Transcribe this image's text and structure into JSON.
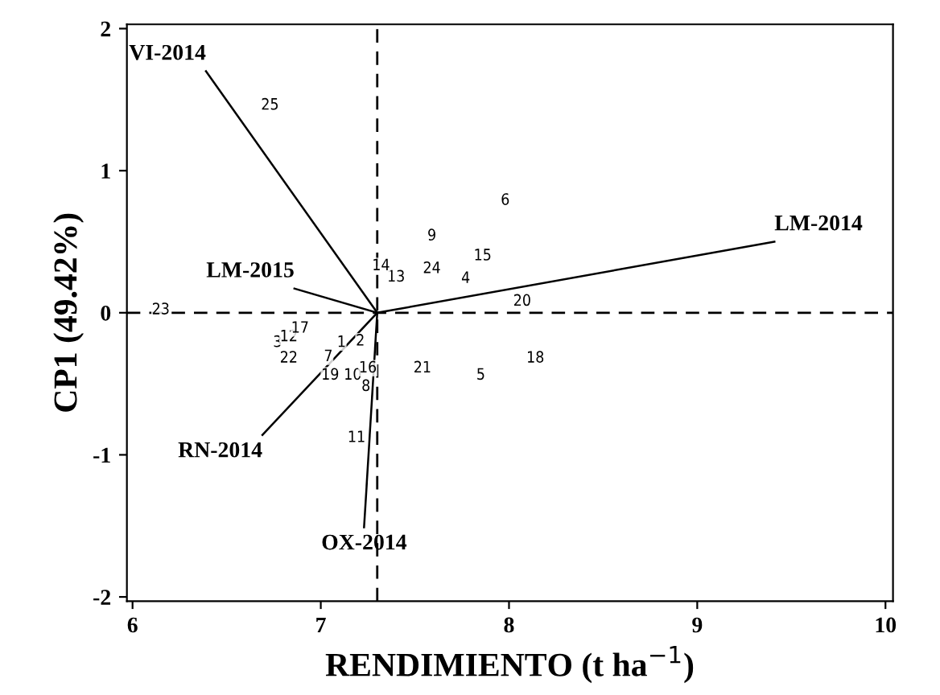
{
  "chart_data": {
    "type": "line",
    "xlabel": "RENDIMIENTO (t ha$^{−1}$)",
    "ylabel": "CP1 (49.42%)",
    "xlim": [
      5.97,
      10.04
    ],
    "ylim": [
      -2.03,
      2.03
    ],
    "xticks": [
      6,
      7,
      8,
      9,
      10
    ],
    "yticks": [
      -2,
      -1,
      0,
      1,
      2
    ],
    "grid": false,
    "legend": false,
    "ref_lines": [
      {
        "axis": "x",
        "value": 7.3,
        "line_style": "dashed",
        "color": "#000000"
      },
      {
        "axis": "y",
        "value": 0,
        "line_style": "dashed",
        "color": "#000000"
      }
    ],
    "annotations": [
      {
        "text": "1",
        "x": 7.11,
        "y": -0.21
      },
      {
        "text": "2",
        "x": 7.21,
        "y": -0.2
      },
      {
        "text": "3",
        "x": 6.77,
        "y": -0.21
      },
      {
        "text": "4",
        "x": 7.77,
        "y": 0.24
      },
      {
        "text": "5",
        "x": 7.85,
        "y": -0.44
      },
      {
        "text": "6",
        "x": 7.98,
        "y": 0.79
      },
      {
        "text": "7",
        "x": 7.04,
        "y": -0.31
      },
      {
        "text": "8",
        "x": 7.24,
        "y": -0.52
      },
      {
        "text": "9",
        "x": 7.59,
        "y": 0.54
      },
      {
        "text": "10",
        "x": 7.17,
        "y": -0.44
      },
      {
        "text": "11",
        "x": 7.19,
        "y": -0.88
      },
      {
        "text": "12",
        "x": 6.83,
        "y": -0.17
      },
      {
        "text": "13",
        "x": 7.4,
        "y": 0.25
      },
      {
        "text": "14",
        "x": 7.32,
        "y": 0.33
      },
      {
        "text": "15",
        "x": 7.86,
        "y": 0.4
      },
      {
        "text": "16",
        "x": 7.25,
        "y": -0.39
      },
      {
        "text": "17",
        "x": 6.89,
        "y": -0.11
      },
      {
        "text": "18",
        "x": 8.14,
        "y": -0.32
      },
      {
        "text": "19",
        "x": 7.05,
        "y": -0.44
      },
      {
        "text": "20",
        "x": 8.07,
        "y": 0.08
      },
      {
        "text": "21",
        "x": 7.54,
        "y": -0.39
      },
      {
        "text": "22",
        "x": 6.83,
        "y": -0.32
      },
      {
        "text": "23",
        "x": 6.15,
        "y": 0.02
      },
      {
        "text": "24",
        "x": 7.59,
        "y": 0.31
      },
      {
        "text": "25",
        "x": 6.73,
        "y": 1.46
      }
    ],
    "series": [
      {
        "name": "VI-2014",
        "color": "#000000",
        "x": [
          7.3,
          6.39
        ],
        "values": [
          0,
          1.7
        ]
      },
      {
        "name": "LM-2015",
        "color": "#000000",
        "x": [
          7.3,
          6.86
        ],
        "values": [
          0,
          0.17
        ]
      },
      {
        "name": "LM-2014",
        "color": "#000000",
        "x": [
          7.3,
          9.41
        ],
        "values": [
          0,
          0.5
        ]
      },
      {
        "name": "RN-2014",
        "color": "#000000",
        "x": [
          7.3,
          6.69
        ],
        "values": [
          0,
          -0.86
        ]
      },
      {
        "name": "OX-2014",
        "color": "#000000",
        "x": [
          7.3,
          7.23
        ],
        "values": [
          0,
          -1.51
        ]
      }
    ]
  }
}
